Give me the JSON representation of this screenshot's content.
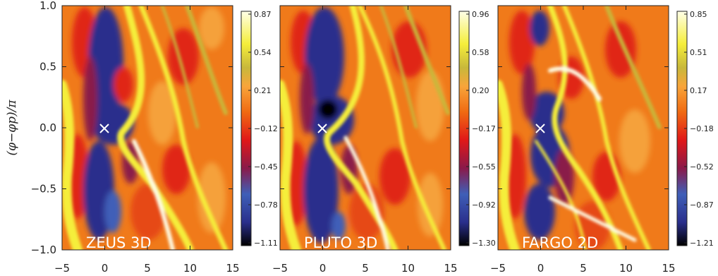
{
  "chart_data": {
    "type": "heatmap",
    "ylabel": "(φ−φp)/π",
    "xlim": [
      -5,
      15
    ],
    "ylim": [
      -1.0,
      1.0
    ],
    "x_ticks": [
      "−5",
      "0",
      "5",
      "10",
      "15"
    ],
    "y_ticks": [
      "1.0",
      "0.5",
      "0.0",
      "−0.5",
      "−1.0"
    ],
    "colormap": [
      "#000000",
      "#2a2f8c",
      "#3f5fb8",
      "#8a1a4a",
      "#e01818",
      "#f06a12",
      "#f8a53a",
      "#c8b83a",
      "#f5ee3a",
      "#ffffe8"
    ],
    "panels": [
      {
        "label": "ZEUS 3D",
        "colorbar_ticks": [
          "0.87",
          "0.54",
          "0.21",
          "−0.12",
          "−0.45",
          "−0.78",
          "−1.11"
        ],
        "planet_marker": [
          0,
          0
        ]
      },
      {
        "label": "PLUTO 3D",
        "colorbar_ticks": [
          "0.96",
          "0.58",
          "0.20",
          "−0.17",
          "−0.55",
          "−0.92",
          "−1.30"
        ],
        "planet_marker": [
          0,
          0
        ]
      },
      {
        "label": "FARGO 2D",
        "colorbar_ticks": [
          "0.85",
          "0.51",
          "0.17",
          "−0.18",
          "−0.52",
          "−0.87",
          "−1.21"
        ],
        "planet_marker": [
          0,
          0
        ]
      }
    ]
  }
}
